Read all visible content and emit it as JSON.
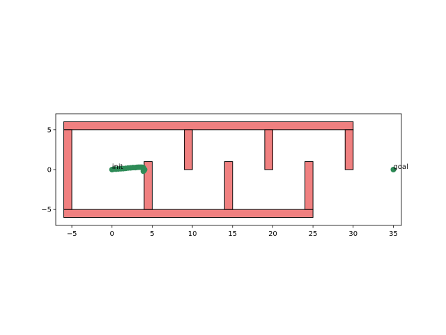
{
  "chart_data": {
    "type": "scatter",
    "title": "",
    "xlabel": "",
    "ylabel": "",
    "xlim": [
      -7,
      36
    ],
    "ylim": [
      -7,
      7
    ],
    "grid": false,
    "xticks": [
      -5,
      0,
      5,
      10,
      15,
      20,
      25,
      30,
      35
    ],
    "yticks": [
      -5,
      0,
      5
    ],
    "xtick_labels": [
      "−5",
      "0",
      "5",
      "10",
      "15",
      "20",
      "25",
      "30",
      "35"
    ],
    "ytick_labels": [
      "−5",
      "0",
      "5"
    ],
    "colors": {
      "wall_fill": "#f08080",
      "wall_edge": "#000000",
      "path": "#2e8b57"
    },
    "walls": [
      {
        "x": -6,
        "y": 5,
        "w": 36,
        "h": 1
      },
      {
        "x": -6,
        "y": -6,
        "w": 31,
        "h": 1
      },
      {
        "x": -6,
        "y": -5,
        "w": 1,
        "h": 10
      },
      {
        "x": 29,
        "y": 0,
        "w": 1,
        "h": 5
      },
      {
        "x": 4,
        "y": -5,
        "w": 1,
        "h": 6
      },
      {
        "x": 14,
        "y": -5,
        "w": 1,
        "h": 6
      },
      {
        "x": 24,
        "y": -5,
        "w": 1,
        "h": 6
      },
      {
        "x": 9,
        "y": 0,
        "w": 1,
        "h": 5
      },
      {
        "x": 19,
        "y": 0,
        "w": 1,
        "h": 5
      }
    ],
    "path_points": [
      [
        0.0,
        0.0
      ],
      [
        0.2,
        0.05
      ],
      [
        0.5,
        0.05
      ],
      [
        0.8,
        0.08
      ],
      [
        1.1,
        0.1
      ],
      [
        1.4,
        0.12
      ],
      [
        1.7,
        0.15
      ],
      [
        2.0,
        0.2
      ],
      [
        2.3,
        0.22
      ],
      [
        2.6,
        0.25
      ],
      [
        2.9,
        0.25
      ],
      [
        3.1,
        0.28
      ],
      [
        3.3,
        0.3
      ],
      [
        3.5,
        0.3
      ],
      [
        3.7,
        0.3
      ],
      [
        3.9,
        0.25
      ],
      [
        3.95,
        0.05
      ],
      [
        4.0,
        -0.1
      ],
      [
        3.9,
        -0.2
      ],
      [
        4.05,
        0.0
      ]
    ],
    "init": {
      "label": "init",
      "x": 0,
      "y": 0
    },
    "goal": {
      "label": "goal",
      "x": 35,
      "y": 0
    }
  }
}
